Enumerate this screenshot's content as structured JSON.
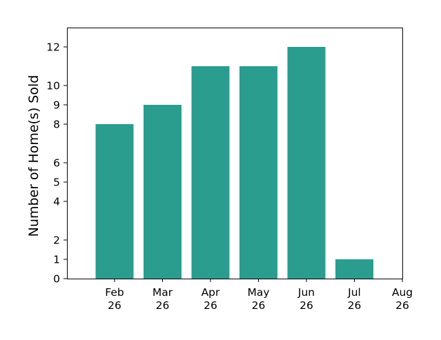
{
  "chart_data": {
    "type": "bar",
    "categories": [
      "Feb 26",
      "Mar 26",
      "Apr 26",
      "May 26",
      "Jun 26",
      "Jul 26"
    ],
    "values": [
      8,
      9,
      11,
      11,
      12,
      1
    ],
    "x_ticks": [
      {
        "line1": "Feb",
        "line2": "26"
      },
      {
        "line1": "Mar",
        "line2": "26"
      },
      {
        "line1": "Apr",
        "line2": "26"
      },
      {
        "line1": "May",
        "line2": "26"
      },
      {
        "line1": "Jun",
        "line2": "26"
      },
      {
        "line1": "Jul",
        "line2": "26"
      },
      {
        "line1": "Aug",
        "line2": "26"
      }
    ],
    "y_ticks": [
      0,
      1,
      2,
      4,
      5,
      6,
      8,
      9,
      10,
      12
    ],
    "ylabel": "Number of Home(s) Sold",
    "xlabel": "",
    "title": "",
    "ylim": [
      0,
      13
    ],
    "bar_color": "#2a9d8f",
    "grid": false,
    "legend": "none"
  }
}
